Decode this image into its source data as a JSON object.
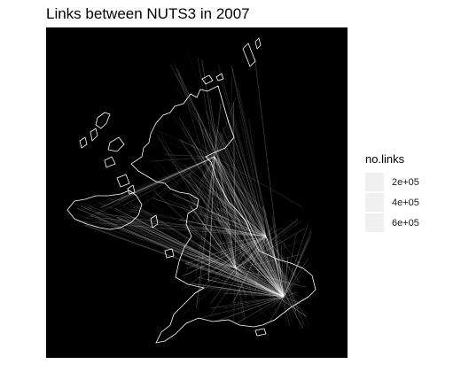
{
  "title": "Links between NUTS3 in 2007",
  "map": {
    "background_color": "#000000",
    "outline_color": "#ffffff",
    "link_color": "#ffffff",
    "description_hidden": true
  },
  "legend": {
    "title": "no.links",
    "key_color": "#f0f0f0",
    "items": [
      {
        "label": "2e+05"
      },
      {
        "label": "4e+05"
      },
      {
        "label": "6e+05"
      }
    ]
  }
}
